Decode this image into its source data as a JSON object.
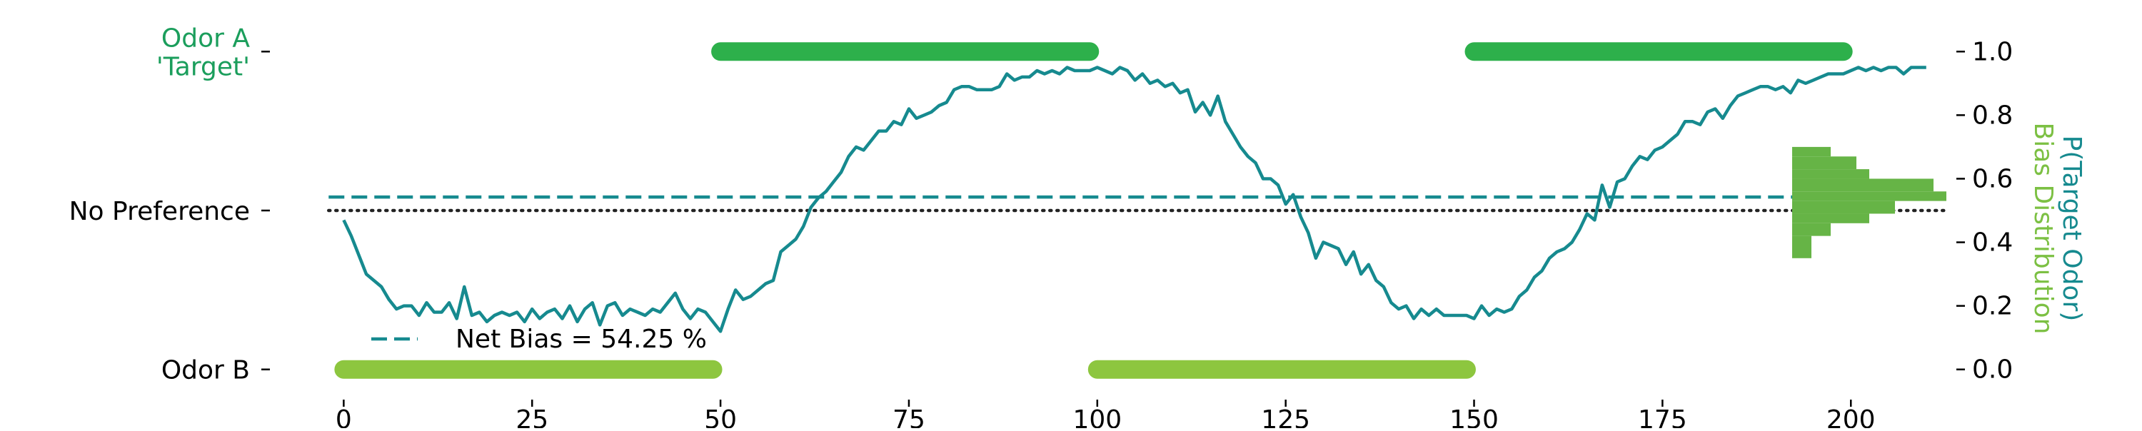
{
  "chart_data": {
    "type": "line",
    "xlim": [
      -2.5,
      214
    ],
    "ylim": [
      -0.05,
      1.05
    ],
    "x_ticks": [
      0,
      25,
      50,
      75,
      100,
      125,
      150,
      175,
      200
    ],
    "right_ticks": [
      0.0,
      0.2,
      0.4,
      0.6,
      0.8,
      1.0
    ],
    "left_ticks": [
      {
        "value": 1.0,
        "lines": [
          "Odor A",
          "'Target'"
        ],
        "color": "#1b9e5c"
      },
      {
        "value": 0.5,
        "lines": [
          "No Preference"
        ],
        "color": "#000000"
      },
      {
        "value": 0.0,
        "lines": [
          "Odor B"
        ],
        "color": "#000000"
      }
    ],
    "right_axis_label": {
      "line1": "P(Target Odor)",
      "line2": "Bias Distribution",
      "line1_color": "#168a8f",
      "line2_color": "#7cc043"
    },
    "odor_blocks": [
      {
        "odor": "A",
        "x_start": 50,
        "x_end": 99,
        "y": 1.0,
        "color": "#2db04b"
      },
      {
        "odor": "B",
        "x_start": 0,
        "x_end": 49,
        "y": 0.0,
        "color": "#8dc63f"
      },
      {
        "odor": "B",
        "x_start": 100,
        "x_end": 149,
        "y": 0.0,
        "color": "#8dc63f"
      },
      {
        "odor": "A",
        "x_start": 150,
        "x_end": 199,
        "y": 1.0,
        "color": "#2db04b"
      }
    ],
    "no_preference_line": {
      "y": 0.5,
      "color": "#222222"
    },
    "net_bias_line": {
      "y": 0.5425,
      "color": "#168a8f"
    },
    "legend": {
      "label": "Net Bias = 54.25 %",
      "placement": "lower-left"
    },
    "series": [
      {
        "color": "#168a8f",
        "x_start": 0,
        "y": [
          0.47,
          0.42,
          0.36,
          0.3,
          0.28,
          0.26,
          0.22,
          0.19,
          0.2,
          0.2,
          0.17,
          0.21,
          0.18,
          0.18,
          0.21,
          0.16,
          0.26,
          0.17,
          0.18,
          0.15,
          0.17,
          0.18,
          0.17,
          0.18,
          0.15,
          0.19,
          0.16,
          0.18,
          0.19,
          0.16,
          0.2,
          0.15,
          0.19,
          0.21,
          0.14,
          0.2,
          0.21,
          0.17,
          0.19,
          0.18,
          0.17,
          0.19,
          0.18,
          0.21,
          0.24,
          0.19,
          0.16,
          0.19,
          0.18,
          0.15,
          0.12,
          0.19,
          0.25,
          0.22,
          0.23,
          0.25,
          0.27,
          0.28,
          0.37,
          0.39,
          0.41,
          0.45,
          0.51,
          0.54,
          0.56,
          0.59,
          0.62,
          0.67,
          0.7,
          0.69,
          0.72,
          0.75,
          0.75,
          0.78,
          0.77,
          0.82,
          0.79,
          0.8,
          0.81,
          0.83,
          0.84,
          0.88,
          0.89,
          0.89,
          0.88,
          0.88,
          0.88,
          0.89,
          0.93,
          0.91,
          0.92,
          0.92,
          0.94,
          0.93,
          0.94,
          0.93,
          0.95,
          0.94,
          0.94,
          0.94,
          0.95,
          0.94,
          0.93,
          0.95,
          0.94,
          0.91,
          0.93,
          0.9,
          0.91,
          0.89,
          0.9,
          0.87,
          0.88,
          0.81,
          0.84,
          0.8,
          0.86,
          0.78,
          0.74,
          0.7,
          0.67,
          0.65,
          0.6,
          0.6,
          0.58,
          0.52,
          0.55,
          0.48,
          0.43,
          0.35,
          0.4,
          0.39,
          0.38,
          0.33,
          0.37,
          0.3,
          0.33,
          0.28,
          0.26,
          0.21,
          0.19,
          0.2,
          0.16,
          0.19,
          0.17,
          0.19,
          0.17,
          0.17,
          0.17,
          0.17,
          0.16,
          0.2,
          0.17,
          0.19,
          0.18,
          0.19,
          0.23,
          0.25,
          0.29,
          0.31,
          0.35,
          0.37,
          0.38,
          0.4,
          0.44,
          0.49,
          0.47,
          0.58,
          0.51,
          0.59,
          0.6,
          0.64,
          0.67,
          0.66,
          0.69,
          0.7,
          0.72,
          0.74,
          0.78,
          0.78,
          0.77,
          0.81,
          0.82,
          0.79,
          0.83,
          0.86,
          0.87,
          0.88,
          0.89,
          0.89,
          0.88,
          0.89,
          0.87,
          0.91,
          0.9,
          0.91,
          0.92,
          0.93,
          0.93,
          0.93,
          0.94,
          0.95,
          0.94,
          0.95,
          0.94,
          0.95,
          0.95,
          0.93,
          0.95,
          0.95,
          0.95
        ]
      }
    ],
    "bias_histogram": {
      "color": "#66b446",
      "bin_edges": [
        0.35,
        0.39,
        0.42,
        0.46,
        0.49,
        0.53,
        0.56,
        0.6,
        0.63,
        0.67,
        0.7
      ],
      "counts": [
        3,
        3,
        6,
        12,
        16,
        24,
        22,
        12,
        10,
        6
      ]
    }
  }
}
